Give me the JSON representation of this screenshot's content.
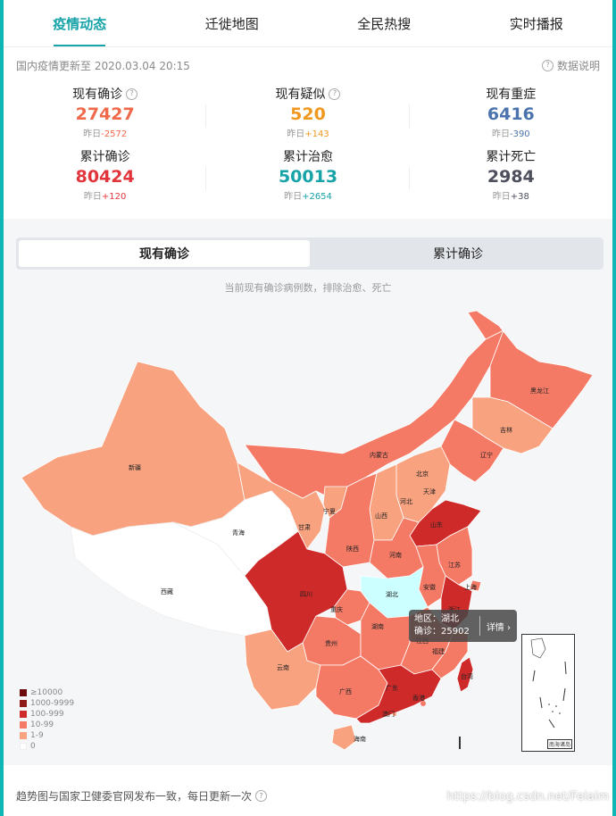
{
  "tabs": [
    {
      "label": "疫情动态",
      "active": true
    },
    {
      "label": "迁徙地图",
      "active": false
    },
    {
      "label": "全民热搜",
      "active": false
    },
    {
      "label": "实时播报",
      "active": false
    }
  ],
  "update": {
    "text": "国内疫情更新至 2020.03.04 20:15",
    "help_label": "数据说明"
  },
  "stats": [
    {
      "label": "现有确诊",
      "value": "27427",
      "delta_prefix": "昨日",
      "delta": "-2572",
      "color": "#f0694b",
      "has_help": true
    },
    {
      "label": "现有疑似",
      "value": "520",
      "delta_prefix": "昨日",
      "delta": "+143",
      "color": "#f0981f",
      "has_help": true
    },
    {
      "label": "现有重症",
      "value": "6416",
      "delta_prefix": "昨日",
      "delta": "-390",
      "color": "#4b73ad",
      "has_help": false
    },
    {
      "label": "累计确诊",
      "value": "80424",
      "delta_prefix": "昨日",
      "delta": "+120",
      "color": "#e2353b",
      "has_help": false
    },
    {
      "label": "累计治愈",
      "value": "50013",
      "delta_prefix": "昨日",
      "delta": "+2654",
      "color": "#17a3a8",
      "has_help": false
    },
    {
      "label": "累计死亡",
      "value": "2984",
      "delta_prefix": "昨日",
      "delta": "+38",
      "color": "#4d4f5c",
      "has_help": false
    }
  ],
  "map": {
    "toggle": [
      "现有确诊",
      "累计确诊"
    ],
    "caption": "当前现有确诊病例数，排除治愈、死亡",
    "legend": [
      {
        "label": "≥10000",
        "color": "#6b0b0b"
      },
      {
        "label": "1000-9999",
        "color": "#8e1a1a"
      },
      {
        "label": "100-999",
        "color": "#cf2a2a"
      },
      {
        "label": "10-99",
        "color": "#f47a66"
      },
      {
        "label": "1-9",
        "color": "#f9a27f"
      },
      {
        "label": "0",
        "color": "#ffffff"
      }
    ],
    "provinces": [
      "黑龙江",
      "吉林",
      "辽宁",
      "内蒙古",
      "北京",
      "天津",
      "河北",
      "山西",
      "山东",
      "宁夏",
      "甘肃",
      "新疆",
      "青海",
      "西藏",
      "陕西",
      "河南",
      "江苏",
      "上海",
      "安徽",
      "四川",
      "重庆",
      "湖北",
      "湖南",
      "贵州",
      "云南",
      "广西",
      "广东",
      "福建",
      "台湾",
      "香港",
      "澳门",
      "海南",
      "浙江",
      "江西"
    ],
    "tooltip": {
      "region_line": "地区：湖北",
      "confirm_line": "确诊：25902",
      "detail": "详情"
    },
    "inset_label": "南海诸岛"
  },
  "footer": {
    "note": "趋势图与国家卫健委官网发布一致，每日更新一次",
    "watermark": "https://blog.csdn.net/Felaim"
  }
}
